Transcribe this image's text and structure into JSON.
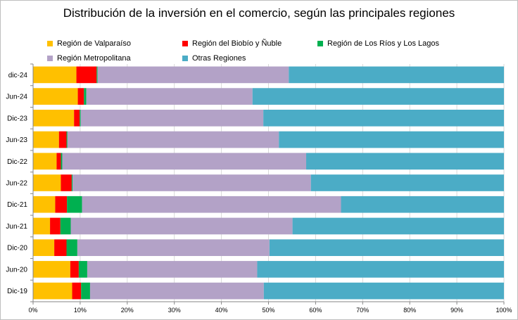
{
  "chart_data": {
    "type": "bar",
    "orientation": "horizontal-stacked-percent",
    "title": "Distribución de la inversión en el comercio, según las principales regiones",
    "categories": [
      "dic-24",
      "Jun-24",
      "Dic-23",
      "Jun-23",
      "Dic-22",
      "Jun-22",
      "Dic-21",
      "Jun-21",
      "Dic-20",
      "Jun-20",
      "Dic-19"
    ],
    "series": [
      {
        "name": "Región de Valparaíso",
        "color": "#FFC000",
        "values": [
          9.2,
          9.5,
          8.7,
          5.5,
          5.0,
          5.9,
          4.7,
          3.6,
          4.5,
          7.9,
          8.3
        ]
      },
      {
        "name": "Región del Biobío y Ñuble",
        "color": "#FF0000",
        "values": [
          4.3,
          1.3,
          1.2,
          1.6,
          0.9,
          2.3,
          2.5,
          2.2,
          2.6,
          1.8,
          1.9
        ]
      },
      {
        "name": "Región de Los Ríos y Los Lagos",
        "color": "#00B050",
        "values": [
          0.2,
          0.5,
          0.2,
          0.2,
          0.3,
          0.2,
          3.2,
          2.2,
          2.3,
          1.8,
          1.9
        ]
      },
      {
        "name": "Región Metropolitana",
        "color": "#B3A2C7",
        "values": [
          40.6,
          35.3,
          38.8,
          44.9,
          51.8,
          50.6,
          55.0,
          47.1,
          40.8,
          36.1,
          36.9
        ]
      },
      {
        "name": "Otras Regiones",
        "color": "#4BACC6",
        "values": [
          45.7,
          53.4,
          51.1,
          47.8,
          42.0,
          41.0,
          34.6,
          44.9,
          49.8,
          52.4,
          51.0
        ]
      }
    ],
    "xlim": [
      0,
      100
    ],
    "xticks": [
      "0%",
      "10%",
      "20%",
      "30%",
      "40%",
      "50%",
      "60%",
      "70%",
      "80%",
      "90%",
      "100%"
    ],
    "grid": true,
    "legend": "top"
  }
}
